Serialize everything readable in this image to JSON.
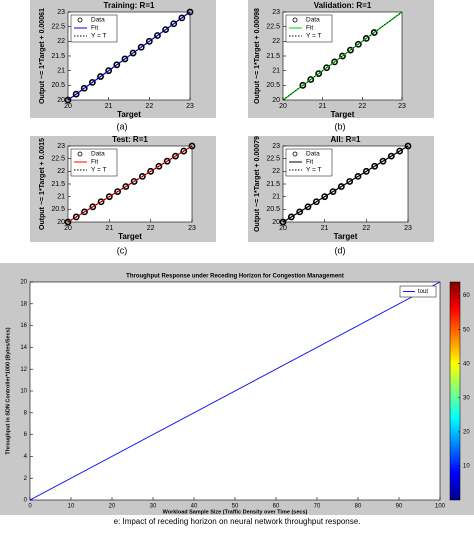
{
  "chart_data": [
    {
      "type": "scatter",
      "title": "Training: R=1",
      "xlabel": "Target",
      "ylabel": "Output ~= 1*Target + 0.00061",
      "xlim": [
        20,
        23
      ],
      "ylim": [
        20,
        23
      ],
      "xticks": [
        20,
        21,
        22,
        23
      ],
      "yticks": [
        20,
        20.5,
        21,
        21.5,
        22,
        22.5,
        23
      ],
      "series": [
        {
          "name": "Data",
          "color": "#000000",
          "marker": "circle",
          "x": [
            20,
            20.2,
            20.4,
            20.6,
            20.8,
            21,
            21.2,
            21.4,
            21.6,
            21.8,
            22,
            22.2,
            22.4,
            22.6,
            22.8,
            23
          ],
          "y": [
            20,
            20.2,
            20.4,
            20.6,
            20.8,
            21,
            21.2,
            21.4,
            21.6,
            21.8,
            22,
            22.2,
            22.4,
            22.6,
            22.8,
            23
          ]
        },
        {
          "name": "Fit",
          "color": "#0000ff",
          "x": [
            20,
            23
          ],
          "y": [
            20,
            23
          ]
        },
        {
          "name": "Y = T",
          "color": "#000000",
          "dashed": true,
          "x": [
            20,
            23
          ],
          "y": [
            20,
            23
          ]
        }
      ]
    },
    {
      "type": "scatter",
      "title": "Validation: R=1",
      "xlabel": "Target",
      "ylabel": "Output ~= 1*Target + 0.00098",
      "xlim": [
        20,
        23
      ],
      "ylim": [
        20,
        23
      ],
      "xticks": [
        20,
        21,
        22,
        23
      ],
      "yticks": [
        20,
        20.5,
        21,
        21.5,
        22,
        22.5,
        23
      ],
      "series": [
        {
          "name": "Data",
          "color": "#000000",
          "marker": "circle",
          "x": [
            20.5,
            20.7,
            20.9,
            21.1,
            21.3,
            21.5,
            21.7,
            21.9,
            22.1,
            22.3
          ],
          "y": [
            20.5,
            20.7,
            20.9,
            21.1,
            21.3,
            21.5,
            21.7,
            21.9,
            22.1,
            22.3
          ]
        },
        {
          "name": "Fit",
          "color": "#00cc00",
          "x": [
            20,
            23
          ],
          "y": [
            20,
            23
          ]
        },
        {
          "name": "Y = T",
          "color": "#000000",
          "dashed": true,
          "x": [
            20,
            23
          ],
          "y": [
            20,
            23
          ]
        }
      ]
    },
    {
      "type": "scatter",
      "title": "Test: R=1",
      "xlabel": "Target",
      "ylabel": "Output ~= 1*Target + 0.0015",
      "xlim": [
        20,
        23
      ],
      "ylim": [
        20,
        23
      ],
      "xticks": [
        20,
        21,
        22,
        23
      ],
      "yticks": [
        20,
        20.5,
        21,
        21.5,
        22,
        22.5,
        23
      ],
      "series": [
        {
          "name": "Data",
          "color": "#000000",
          "marker": "circle",
          "x": [
            20,
            20.2,
            20.4,
            20.6,
            20.8,
            21,
            21.2,
            21.4,
            21.6,
            21.8,
            22,
            22.2,
            22.4,
            22.6,
            22.8,
            23
          ],
          "y": [
            20,
            20.2,
            20.4,
            20.6,
            20.8,
            21,
            21.2,
            21.4,
            21.6,
            21.8,
            22,
            22.2,
            22.4,
            22.6,
            22.8,
            23
          ]
        },
        {
          "name": "Fit",
          "color": "#ff0000",
          "x": [
            20,
            23
          ],
          "y": [
            20,
            23
          ]
        },
        {
          "name": "Y = T",
          "color": "#000000",
          "dashed": true,
          "x": [
            20,
            23
          ],
          "y": [
            20,
            23
          ]
        }
      ]
    },
    {
      "type": "scatter",
      "title": "All: R=1",
      "xlabel": "Target",
      "ylabel": "Output ~= 1*Target + 0.00079",
      "xlim": [
        20,
        23
      ],
      "ylim": [
        20,
        23
      ],
      "xticks": [
        20,
        21,
        22,
        23
      ],
      "yticks": [
        20,
        20.5,
        21,
        21.5,
        22,
        22.5,
        23
      ],
      "series": [
        {
          "name": "Data",
          "color": "#000000",
          "marker": "circle",
          "x": [
            20,
            20.2,
            20.4,
            20.6,
            20.8,
            21,
            21.2,
            21.4,
            21.6,
            21.8,
            22,
            22.2,
            22.4,
            22.6,
            22.8,
            23
          ],
          "y": [
            20,
            20.2,
            20.4,
            20.6,
            20.8,
            21,
            21.2,
            21.4,
            21.6,
            21.8,
            22,
            22.2,
            22.4,
            22.6,
            22.8,
            23
          ]
        },
        {
          "name": "Fit",
          "color": "#000000",
          "x": [
            20,
            23
          ],
          "y": [
            20,
            23
          ]
        },
        {
          "name": "Y = T",
          "color": "#000000",
          "dashed": true,
          "x": [
            20,
            23
          ],
          "y": [
            20,
            23
          ]
        }
      ]
    },
    {
      "type": "line",
      "title": "Throughput Response under Receding  Horizon  for Congestion Management",
      "xlabel": "Workload Sample Size (Traffic Density  over Time (secs)",
      "ylabel": "Throughput in SDN Controller*1000 (Bytes/Secs)",
      "xlim": [
        0,
        100
      ],
      "ylim": [
        0,
        20
      ],
      "xticks": [
        0,
        10,
        20,
        30,
        40,
        50,
        60,
        70,
        80,
        90,
        100
      ],
      "yticks": [
        0,
        2,
        4,
        6,
        8,
        10,
        12,
        14,
        16,
        18,
        20
      ],
      "legend": "upper right",
      "series": [
        {
          "name": "tout",
          "color": "#0000ff",
          "x": [
            0,
            100
          ],
          "y": [
            0,
            20
          ]
        }
      ],
      "colorbar": {
        "lim": [
          0,
          64
        ],
        "ticks": [
          10,
          20,
          30,
          40,
          50,
          60
        ]
      }
    }
  ],
  "captions": [
    "(a)",
    "(b)",
    "(c)",
    "(d)",
    "e: Impact of receding horizon on neural network throughput response."
  ]
}
